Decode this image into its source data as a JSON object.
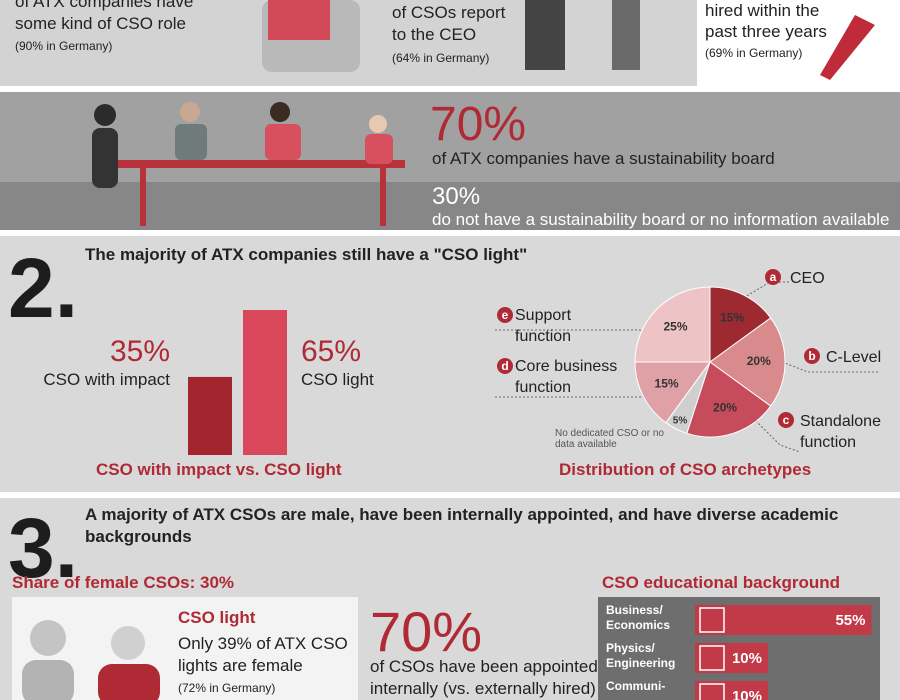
{
  "intro": {
    "left": [
      "of ATX companies have",
      "some kind of CSO role",
      "(90% in Germany)"
    ],
    "middle": [
      "of CSOs report",
      "to the CEO",
      "(64% in Germany)"
    ],
    "right": [
      "hired within the",
      "past three years",
      "(69% in Germany)"
    ]
  },
  "board": {
    "yes_value": "70%",
    "yes_text": "of ATX companies have a sustainability board",
    "no_value": "30%",
    "no_text": "do not have a sustainability board or no information available"
  },
  "section2": {
    "number": "2.",
    "heading": "The majority of ATX companies still have a \"CSO light\""
  },
  "section3": {
    "number": "3.",
    "heading": "A majority of ATX CSOs are male, have been internally appointed, and have diverse academic backgrounds",
    "female_title": "Share of female CSOs: 30%",
    "card_title": "CSO light",
    "card_text": "Only 39% of ATX CSO lights are female",
    "card_note": "(72% in Germany)",
    "internal_value": "70%",
    "internal_text": "of CSOs have been appointed internally (vs. externally hired)"
  },
  "chart_data": [
    {
      "type": "bar",
      "title": "CSO with impact vs. CSO light",
      "categories": [
        "CSO with impact",
        "CSO light"
      ],
      "values": [
        35,
        65
      ],
      "value_labels": [
        "35%",
        "65%"
      ],
      "colors": [
        "#a3262f",
        "#d9475a"
      ]
    },
    {
      "type": "pie",
      "title": "Distribution of CSO archetypes",
      "categories": [
        "CEO",
        "C-Level",
        "Standalone function",
        "No dedicated CSO or no data available",
        "Core business function",
        "Support function"
      ],
      "letters": [
        "a",
        "b",
        "c",
        null,
        "d",
        "e"
      ],
      "values": [
        15,
        20,
        20,
        5,
        15,
        25
      ],
      "value_labels": [
        "15%",
        "20%",
        "20%",
        "5%",
        "15%",
        "25%"
      ],
      "colors": [
        "#9c2a30",
        "#d98a8d",
        "#c64b5b",
        "#cfcfcf",
        "#e0a1a6",
        "#edc3c6"
      ]
    },
    {
      "type": "bar",
      "horizontal": true,
      "title": "CSO educational background",
      "categories": [
        "Business/ Economics",
        "Physics/ Engineering",
        "Communi-"
      ],
      "values": [
        55,
        10,
        10
      ],
      "value_labels": [
        "55%",
        "10%",
        "10%"
      ],
      "color": "#c23a48"
    }
  ]
}
